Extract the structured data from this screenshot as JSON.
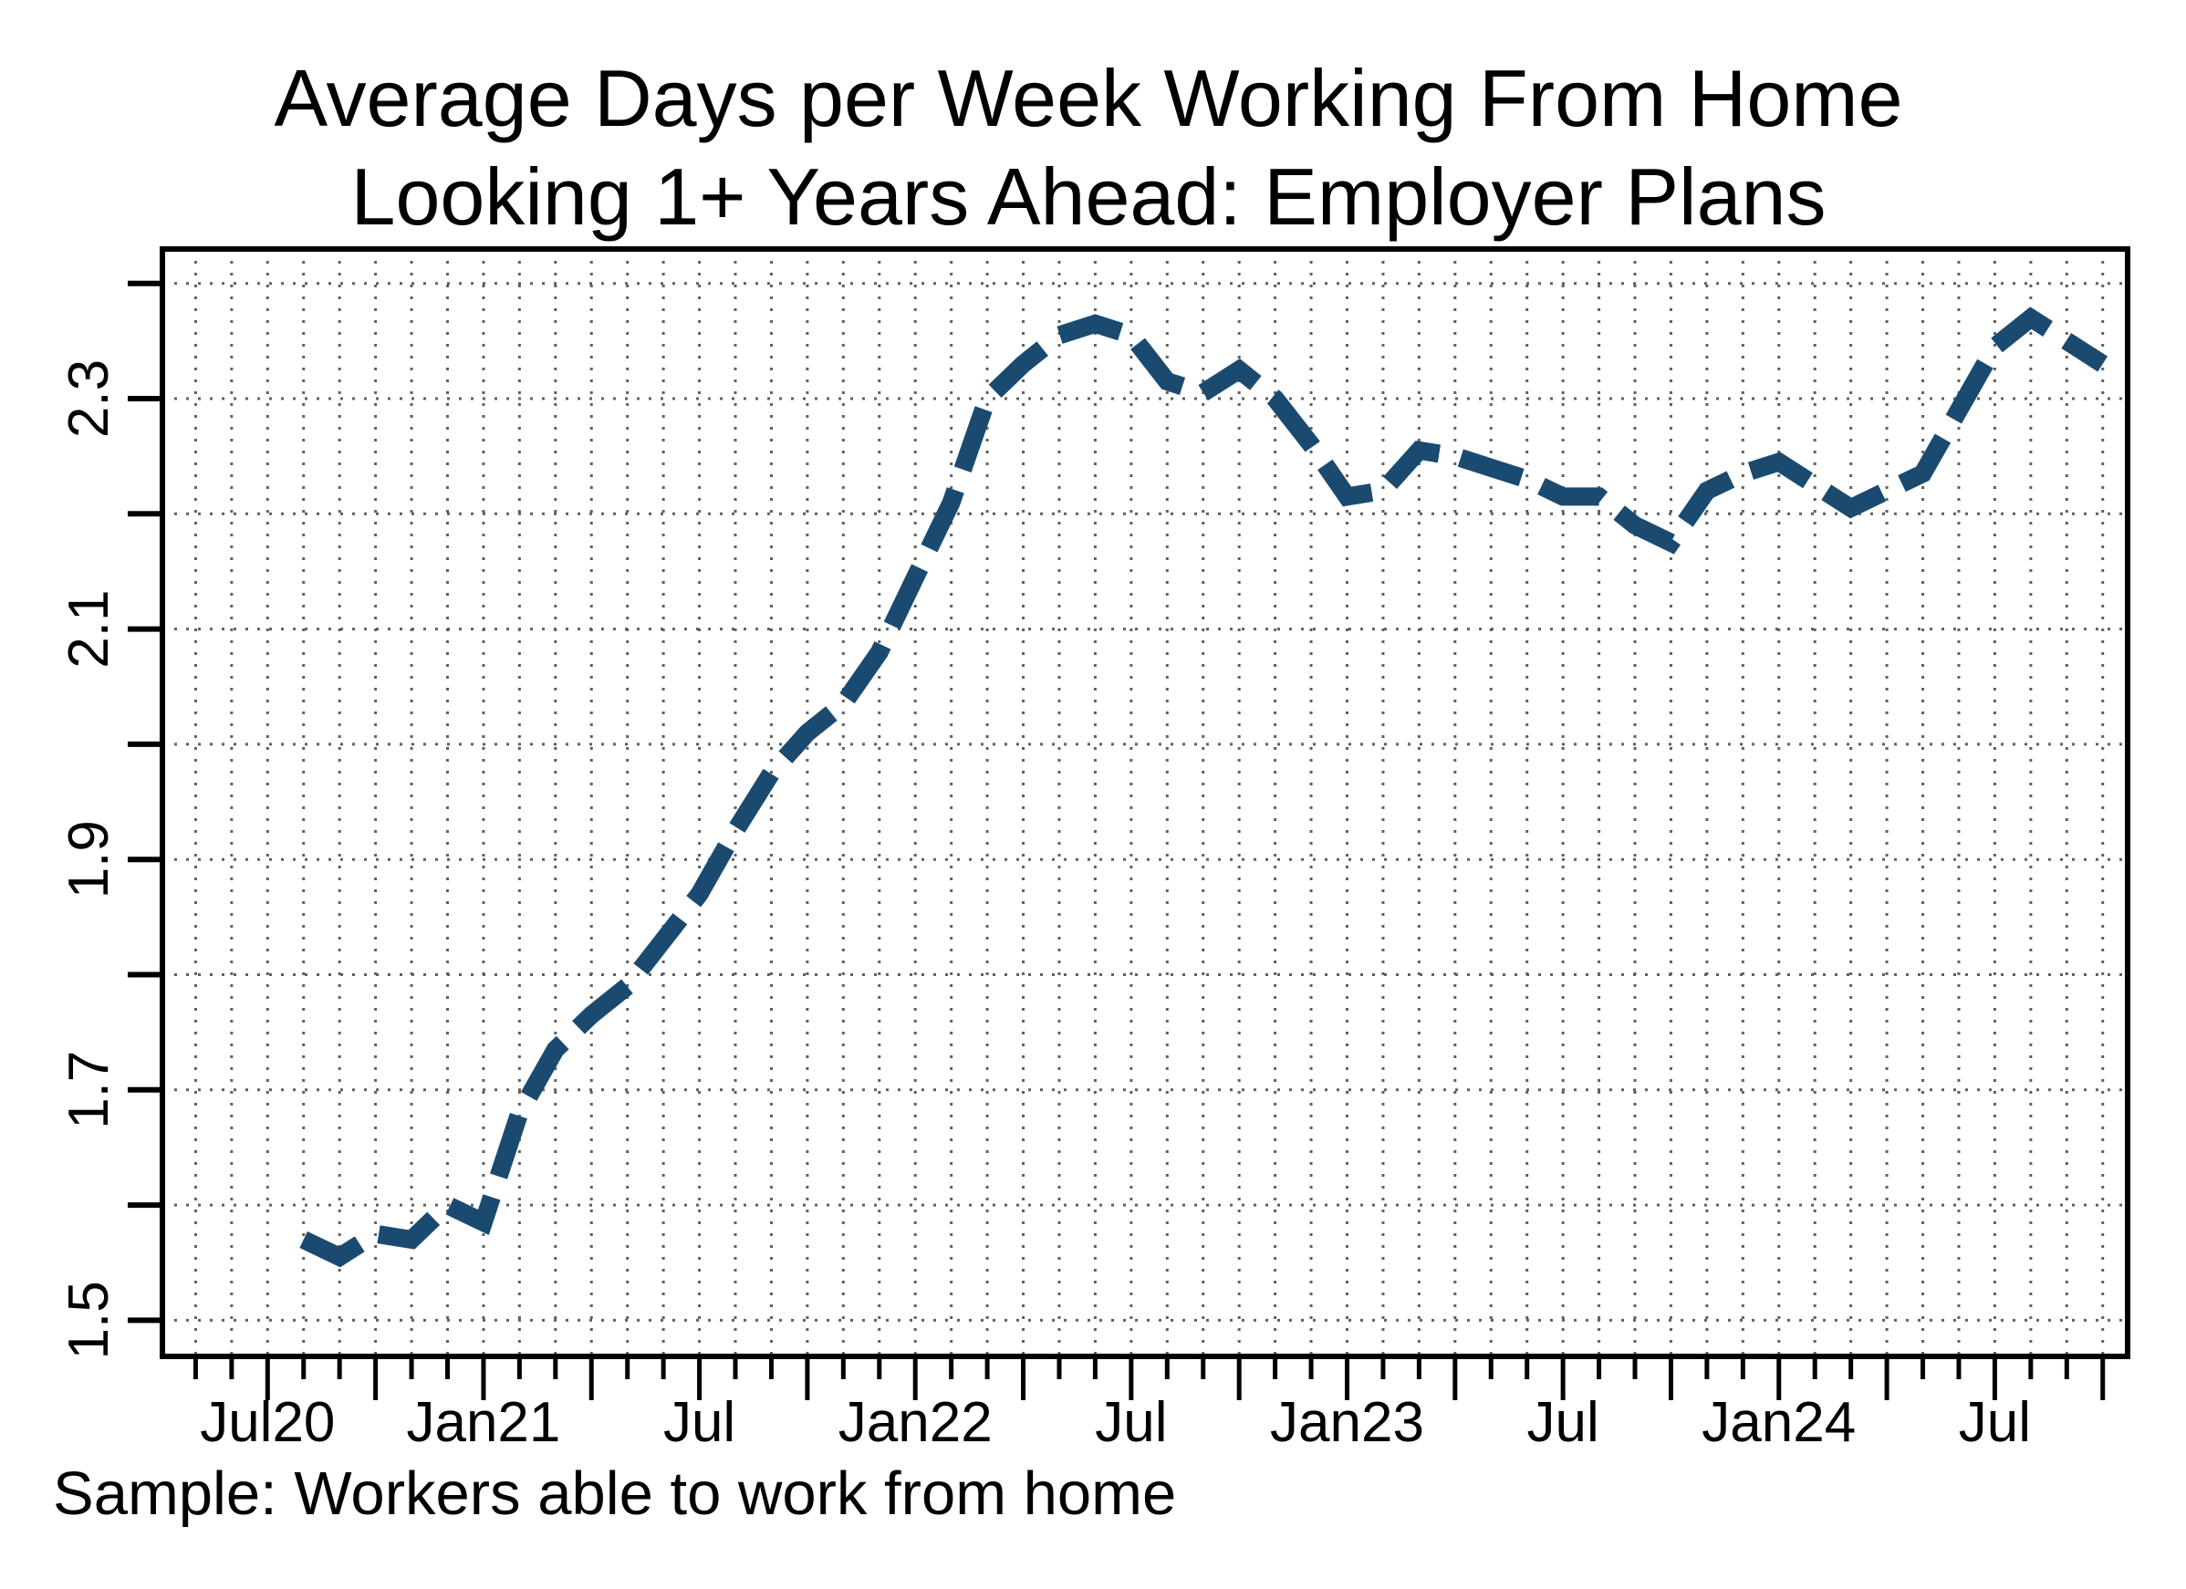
{
  "title": {
    "line1": "Average Days per Week Working From Home",
    "line2": "Looking 1+ Years Ahead: Employer Plans"
  },
  "footnote": "Sample: Workers able to work from home",
  "chart_data": {
    "type": "line",
    "title": "Average Days per Week Working From Home Looking 1+ Years Ahead: Employer Plans",
    "ylabel": "",
    "xlabel": "",
    "grid": "dotted",
    "legend": "none",
    "line_color": "#1B4A70",
    "line_style": "dashed",
    "x": [
      "Aug 2020",
      "Sep 2020",
      "Oct 2020",
      "Nov 2020",
      "Dec 2020",
      "Jan 2021",
      "Feb 2021",
      "Mar 2021",
      "Apr 2021",
      "May 2021",
      "Jun 2021",
      "Jul 2021",
      "Aug 2021",
      "Sep 2021",
      "Oct 2021",
      "Nov 2021",
      "Dec 2021",
      "Jan 2022",
      "Feb 2022",
      "Mar 2022",
      "Apr 2022",
      "May 2022",
      "Jun 2022",
      "Jul 2022",
      "Aug 2022",
      "Sep 2022",
      "Oct 2022",
      "Nov 2022",
      "Dec 2022",
      "Jan 2023",
      "Feb 2023",
      "Mar 2023",
      "Apr 2023",
      "May 2023",
      "Jun 2023",
      "Jul 2023",
      "Aug 2023",
      "Sep 2023",
      "Oct 2023",
      "Nov 2023",
      "Dec 2023",
      "Jan 2024",
      "Feb 2024",
      "Mar 2024",
      "Apr 2024",
      "May 2024",
      "Jun 2024",
      "Jul 2024",
      "Aug 2024",
      "Sep 2024",
      "Oct 2024"
    ],
    "values": [
      1.57,
      1.555,
      1.575,
      1.57,
      1.6,
      1.585,
      1.68,
      1.735,
      1.765,
      1.79,
      1.83,
      1.87,
      1.925,
      1.975,
      2.01,
      2.035,
      2.08,
      2.145,
      2.21,
      2.3,
      2.33,
      2.355,
      2.365,
      2.355,
      2.315,
      2.305,
      2.325,
      2.3,
      2.26,
      2.215,
      2.22,
      2.255,
      2.25,
      2.24,
      2.23,
      2.215,
      2.215,
      2.19,
      2.175,
      2.22,
      2.235,
      2.245,
      2.225,
      2.205,
      2.22,
      2.235,
      2.29,
      2.345,
      2.37,
      2.35,
      2.33
    ],
    "x_axis": {
      "tick_labels": [
        "Jul20",
        "Jan21",
        "Jul",
        "Jan22",
        "Jul",
        "Jan23",
        "Jul",
        "Jan24",
        "Jul"
      ],
      "minor_ticks": "monthly (May 2020 - Oct 2024)",
      "major_ticks": "quarterly (Jan/Apr/Jul/Oct)"
    },
    "y_axis": {
      "tick_labels": [
        "1.5",
        "1.7",
        "1.9",
        "2.1",
        "2.3"
      ],
      "gridline_values": [
        1.5,
        1.6,
        1.7,
        1.8,
        1.9,
        2.0,
        2.1,
        2.2,
        2.3,
        2.4
      ],
      "ylim": [
        1.47,
        2.43
      ]
    },
    "note": "Sample: Workers able to work from home"
  }
}
